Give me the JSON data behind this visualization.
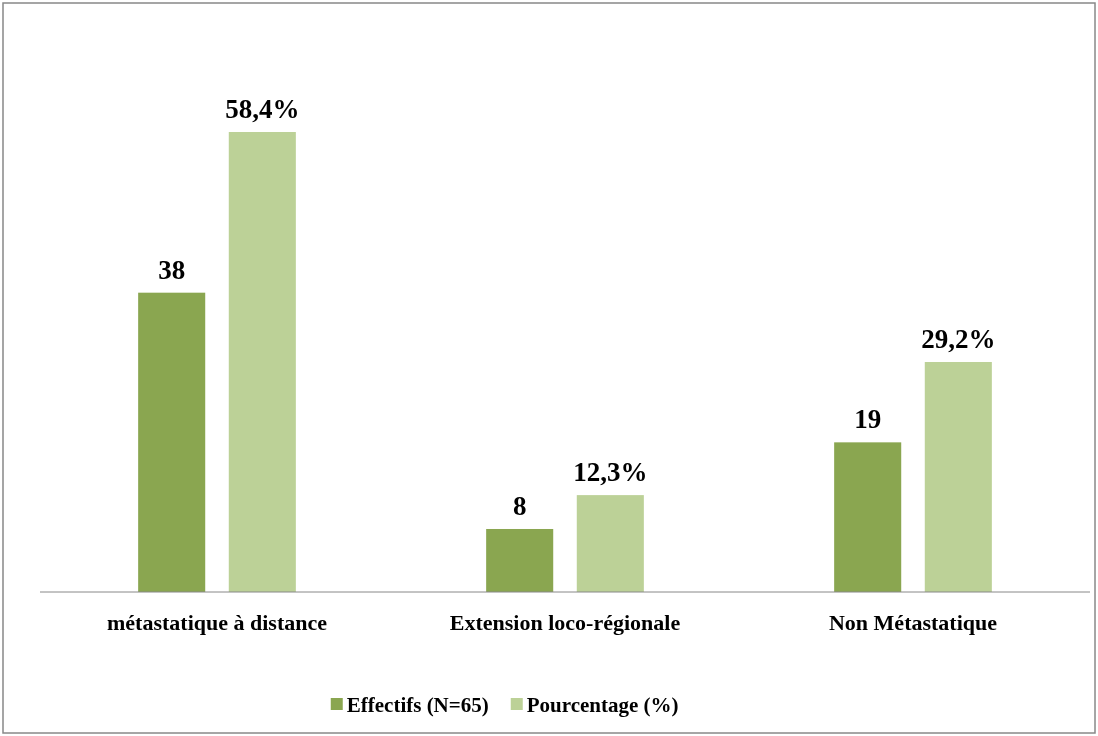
{
  "chart_data": {
    "type": "bar",
    "categories": [
      "métastatique à distance",
      "Extension loco-régionale",
      "Non Métastatique"
    ],
    "series": [
      {
        "name": "Effectifs (N=65)",
        "color": "#8aa650",
        "values": [
          38,
          8,
          19
        ],
        "value_labels": [
          "38",
          "8",
          "19"
        ]
      },
      {
        "name": "Pourcentage (%)",
        "color": "#bcd197",
        "values": [
          58.4,
          12.3,
          29.2
        ],
        "value_labels": [
          "58,4%",
          "12,3%",
          "29,2%"
        ]
      }
    ],
    "legend": "bottom"
  }
}
